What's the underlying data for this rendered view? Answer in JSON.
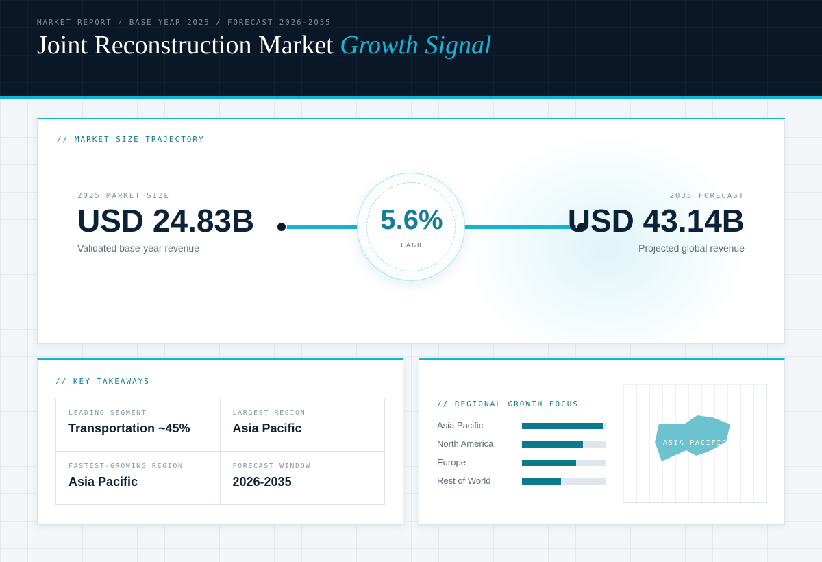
{
  "header": {
    "eyebrow": "MARKET REPORT / BASE YEAR 2025 / FORECAST 2026-2035",
    "title_main": "Joint Reconstruction Market",
    "title_accent": "Growth Signal"
  },
  "trajectory": {
    "section_label": "// MARKET SIZE TRAJECTORY",
    "base": {
      "label": "2025 MARKET SIZE",
      "value": "USD 24.83B",
      "desc": "Validated base-year revenue"
    },
    "forecast": {
      "label": "2035 FORECAST",
      "value": "USD 43.14B",
      "desc": "Projected global revenue"
    },
    "cagr": {
      "value": "5.6%",
      "label": "CAGR"
    }
  },
  "takeaways": {
    "section_label": "// KEY TAKEAWAYS",
    "items": [
      {
        "label": "LEADING SEGMENT",
        "value": "Transportation ~45%"
      },
      {
        "label": "LARGEST REGION",
        "value": "Asia Pacific"
      },
      {
        "label": "FASTEST-GROWING REGION",
        "value": "Asia Pacific"
      },
      {
        "label": "FORECAST WINDOW",
        "value": "2026-2035"
      }
    ]
  },
  "regional": {
    "section_label": "// REGIONAL GROWTH FOCUS",
    "regions": [
      {
        "name": "Asia Pacific",
        "share": 0.96
      },
      {
        "name": "North America",
        "share": 0.72
      },
      {
        "name": "Europe",
        "share": 0.64
      },
      {
        "name": "Rest of World",
        "share": 0.46
      }
    ],
    "map_label": "ASIA PACIFIC"
  },
  "colors": {
    "accent": "#14b3cf",
    "bar_fill": "#0c7a8d",
    "header_bg": "#0a1726"
  }
}
